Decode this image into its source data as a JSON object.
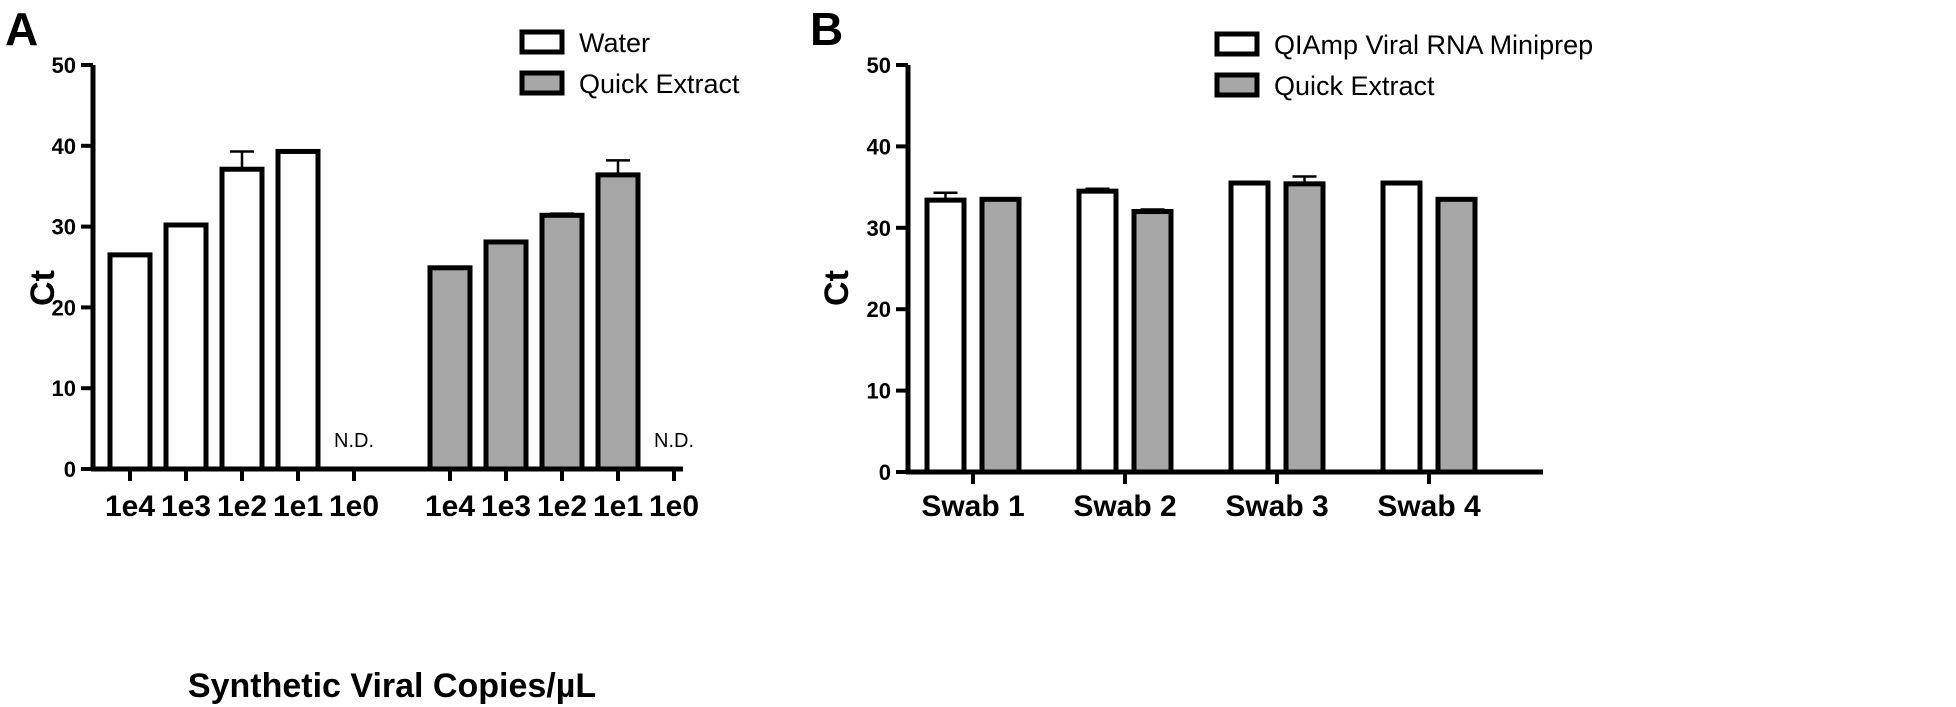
{
  "chart_data": [
    {
      "type": "bar",
      "panel_label": "A",
      "ylabel": "Ct",
      "xlabel": "Synthetic Viral Copies/µL",
      "ylim": [
        0,
        50
      ],
      "yticks": [
        0,
        10,
        20,
        30,
        40,
        50
      ],
      "legend_position": "top-right",
      "groups": [
        {
          "series": "Water",
          "color": "#ffffff",
          "categories": [
            "1e4",
            "1e3",
            "1e2",
            "1e1",
            "1e0"
          ],
          "values": [
            26.5,
            30.2,
            37.1,
            39.3,
            null
          ],
          "errors": [
            0.1,
            0.15,
            2.2,
            0,
            null
          ],
          "annotations": [
            "",
            "",
            "",
            "",
            "N.D."
          ]
        },
        {
          "series": "Quick Extract",
          "color": "#a6a6a6",
          "categories": [
            "1e4",
            "1e3",
            "1e2",
            "1e1",
            "1e0"
          ],
          "values": [
            24.9,
            28.1,
            31.4,
            36.4,
            null
          ],
          "errors": [
            0.1,
            0.1,
            0.2,
            1.8,
            null
          ],
          "annotations": [
            "",
            "",
            "",
            "",
            "N.D."
          ]
        }
      ],
      "legend": [
        {
          "label": "Water",
          "color": "#ffffff"
        },
        {
          "label": "Quick Extract",
          "color": "#a6a6a6"
        }
      ]
    },
    {
      "type": "bar",
      "panel_label": "B",
      "ylabel": "Ct",
      "xlabel": "",
      "ylim": [
        0,
        50
      ],
      "yticks": [
        0,
        10,
        20,
        30,
        40,
        50
      ],
      "legend_position": "top-right",
      "categories": [
        "Swab 1",
        "Swab 2",
        "Swab 3",
        "Swab 4"
      ],
      "series": [
        {
          "name": "QIAmp Viral RNA Miniprep",
          "color": "#ffffff",
          "values": [
            33.4,
            34.5,
            35.5,
            35.5
          ],
          "errors": [
            0.9,
            0.3,
            0.15,
            0.15
          ]
        },
        {
          "name": "Quick Extract",
          "color": "#a6a6a6",
          "values": [
            33.5,
            32.0,
            35.4,
            33.5
          ],
          "errors": [
            0.1,
            0.25,
            0.9,
            0.1
          ]
        }
      ],
      "legend": [
        {
          "label": "QIAmp Viral RNA Miniprep",
          "color": "#ffffff"
        },
        {
          "label": "Quick Extract",
          "color": "#a6a6a6"
        }
      ]
    }
  ]
}
